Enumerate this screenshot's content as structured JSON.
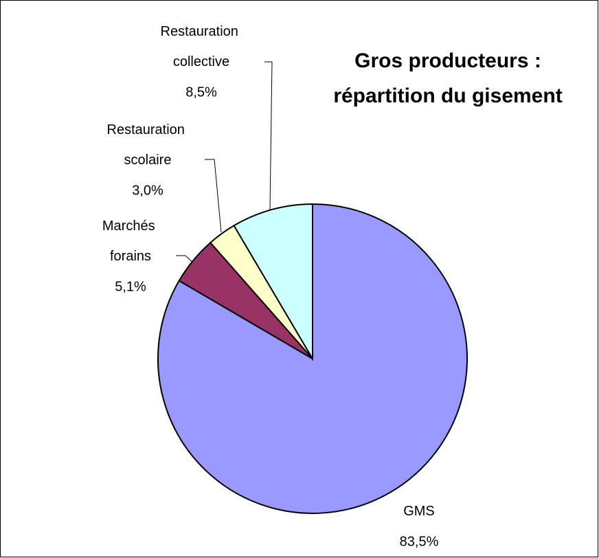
{
  "chart_data": {
    "type": "pie",
    "title": [
      "Gros producteurs :",
      "répartition du gisement"
    ],
    "categories": [
      "GMS",
      "Marchés forains",
      "Restauration scolaire",
      "Restauration collective"
    ],
    "values": [
      83.5,
      5.1,
      3.0,
      8.5
    ],
    "value_labels": [
      "83,5%",
      "5,1%",
      "3,0%",
      "8,5%"
    ],
    "colors": [
      "#9999ff",
      "#993366",
      "#ffffcc",
      "#ccffff"
    ]
  }
}
